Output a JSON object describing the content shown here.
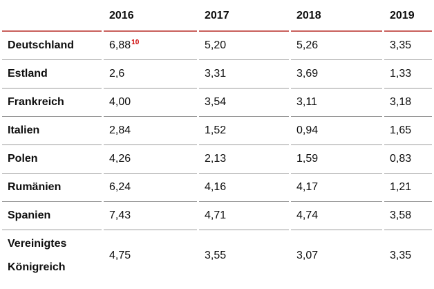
{
  "table": {
    "corner_label": "",
    "columns": [
      "2016",
      "2017",
      "2018",
      "2019"
    ],
    "rows": [
      {
        "label": "Deutschland",
        "values": [
          "6,88",
          "5,20",
          "5,26",
          "3,35"
        ],
        "footnote": "10"
      },
      {
        "label": "Estland",
        "values": [
          "2,6",
          "3,31",
          "3,69",
          "1,33"
        ]
      },
      {
        "label": "Frankreich",
        "values": [
          "4,00",
          "3,54",
          "3,11",
          "3,18"
        ]
      },
      {
        "label": "Italien",
        "values": [
          "2,84",
          "1,52",
          "0,94",
          "1,65"
        ]
      },
      {
        "label": "Polen",
        "values": [
          "4,26",
          "2,13",
          "1,59",
          "0,83"
        ]
      },
      {
        "label": "Rumänien",
        "values": [
          "6,24",
          "4,16",
          "4,17",
          "1,21"
        ]
      },
      {
        "label": "Spanien",
        "values": [
          "7,43",
          "4,71",
          "4,74",
          "3,58"
        ]
      },
      {
        "label": "Vereinigtes Königreich",
        "values": [
          "4,75",
          "3,55",
          "3,07",
          "3,35"
        ]
      }
    ],
    "colors": {
      "header_rule": "#c9605c",
      "row_rule": "#9a9a9a",
      "footnote_red": "#cc0000",
      "text": "#0d0d0d"
    }
  },
  "chart_data": {
    "type": "table",
    "title": "",
    "categories": [
      "2016",
      "2017",
      "2018",
      "2019"
    ],
    "series": [
      {
        "name": "Deutschland",
        "values": [
          6.88,
          5.2,
          5.26,
          3.35
        ],
        "footnote_on": {
          "year": "2016",
          "marker": "10"
        }
      },
      {
        "name": "Estland",
        "values": [
          2.6,
          3.31,
          3.69,
          1.33
        ]
      },
      {
        "name": "Frankreich",
        "values": [
          4.0,
          3.54,
          3.11,
          3.18
        ]
      },
      {
        "name": "Italien",
        "values": [
          2.84,
          1.52,
          0.94,
          1.65
        ]
      },
      {
        "name": "Polen",
        "values": [
          4.26,
          2.13,
          1.59,
          0.83
        ]
      },
      {
        "name": "Rumänien",
        "values": [
          6.24,
          4.16,
          4.17,
          1.21
        ]
      },
      {
        "name": "Spanien",
        "values": [
          7.43,
          4.71,
          4.74,
          3.58
        ]
      },
      {
        "name": "Vereinigtes Königreich",
        "values": [
          4.75,
          3.55,
          3.07,
          3.35
        ]
      }
    ],
    "number_format": "decimal-comma",
    "layout": {
      "grid": "horizontal-rules-only",
      "header_rule_color": "#c9605c",
      "row_rule_color": "#9a9a9a"
    }
  }
}
